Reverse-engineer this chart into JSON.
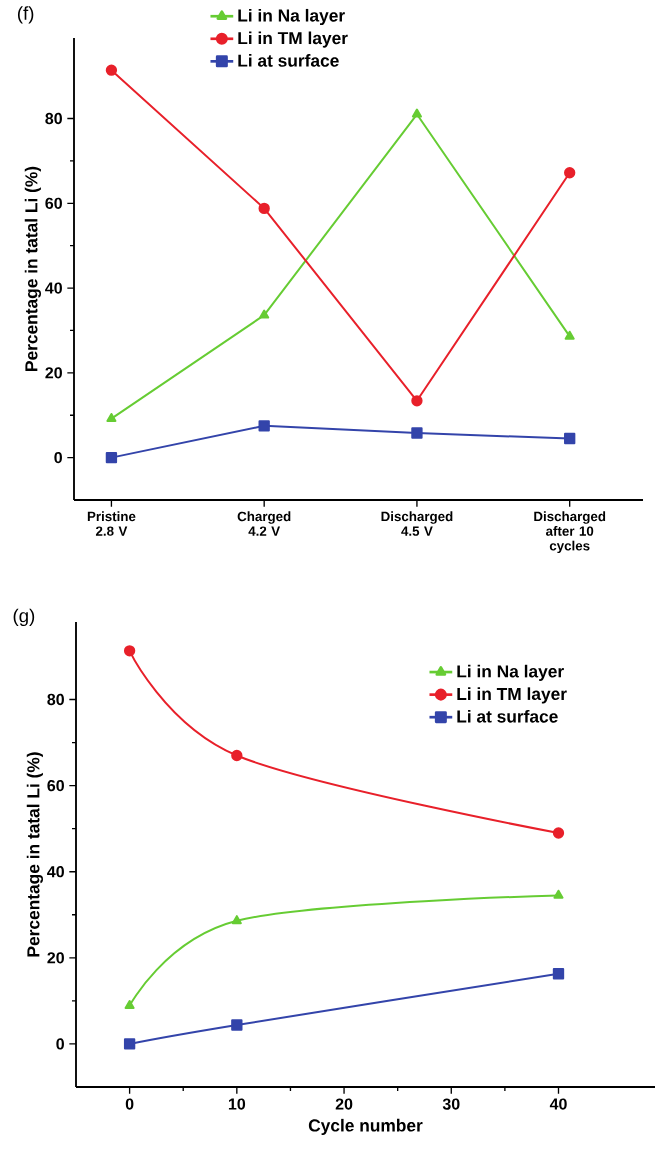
{
  "chart_data": [
    {
      "type": "line",
      "title": "(f)",
      "ylabel": "Percentage in tatal Li (%)",
      "categories": [
        "Pristine 2.8 V",
        "Charged 4.2 V",
        "Discharged 4.5 V",
        "Discharged after 10 cycles"
      ],
      "ylim": [
        -10,
        99
      ],
      "yticks": [
        0,
        20,
        40,
        60,
        80
      ],
      "legend": "top",
      "line_style": "solid",
      "series": [
        {
          "name": "Li in Na layer",
          "color": "#66cc33",
          "marker": "triangle",
          "values": [
            9.2,
            33.6,
            81,
            28.6
          ]
        },
        {
          "name": "Li in TM layer",
          "color": "#e8202a",
          "marker": "circle",
          "values": [
            91.4,
            58.8,
            13.4,
            67.2
          ]
        },
        {
          "name": "Li at surface",
          "color": "#3344aa",
          "marker": "square",
          "values": [
            0,
            7.5,
            5.8,
            4.5
          ]
        }
      ]
    },
    {
      "type": "line",
      "title": "(g)",
      "xlabel": "Cycle number",
      "ylabel": "Percentage in tatal Li (%)",
      "x": [
        0,
        10,
        40
      ],
      "xlim": [
        -5,
        49
      ],
      "xticks": [
        0,
        10,
        20,
        30,
        40
      ],
      "ylim": [
        -10,
        98
      ],
      "yticks": [
        0,
        20,
        40,
        60,
        80
      ],
      "legend": "top right",
      "line_style": "solid",
      "series": [
        {
          "name": "Li in Na layer",
          "color": "#66cc33",
          "marker": "triangle",
          "values": [
            8.9,
            28.6,
            34.5
          ]
        },
        {
          "name": "Li in TM layer",
          "color": "#e8202a",
          "marker": "circle",
          "values": [
            91.3,
            67,
            49
          ]
        },
        {
          "name": "Li at surface",
          "color": "#3344aa",
          "marker": "square",
          "values": [
            0,
            4.4,
            16.3
          ]
        }
      ]
    }
  ]
}
